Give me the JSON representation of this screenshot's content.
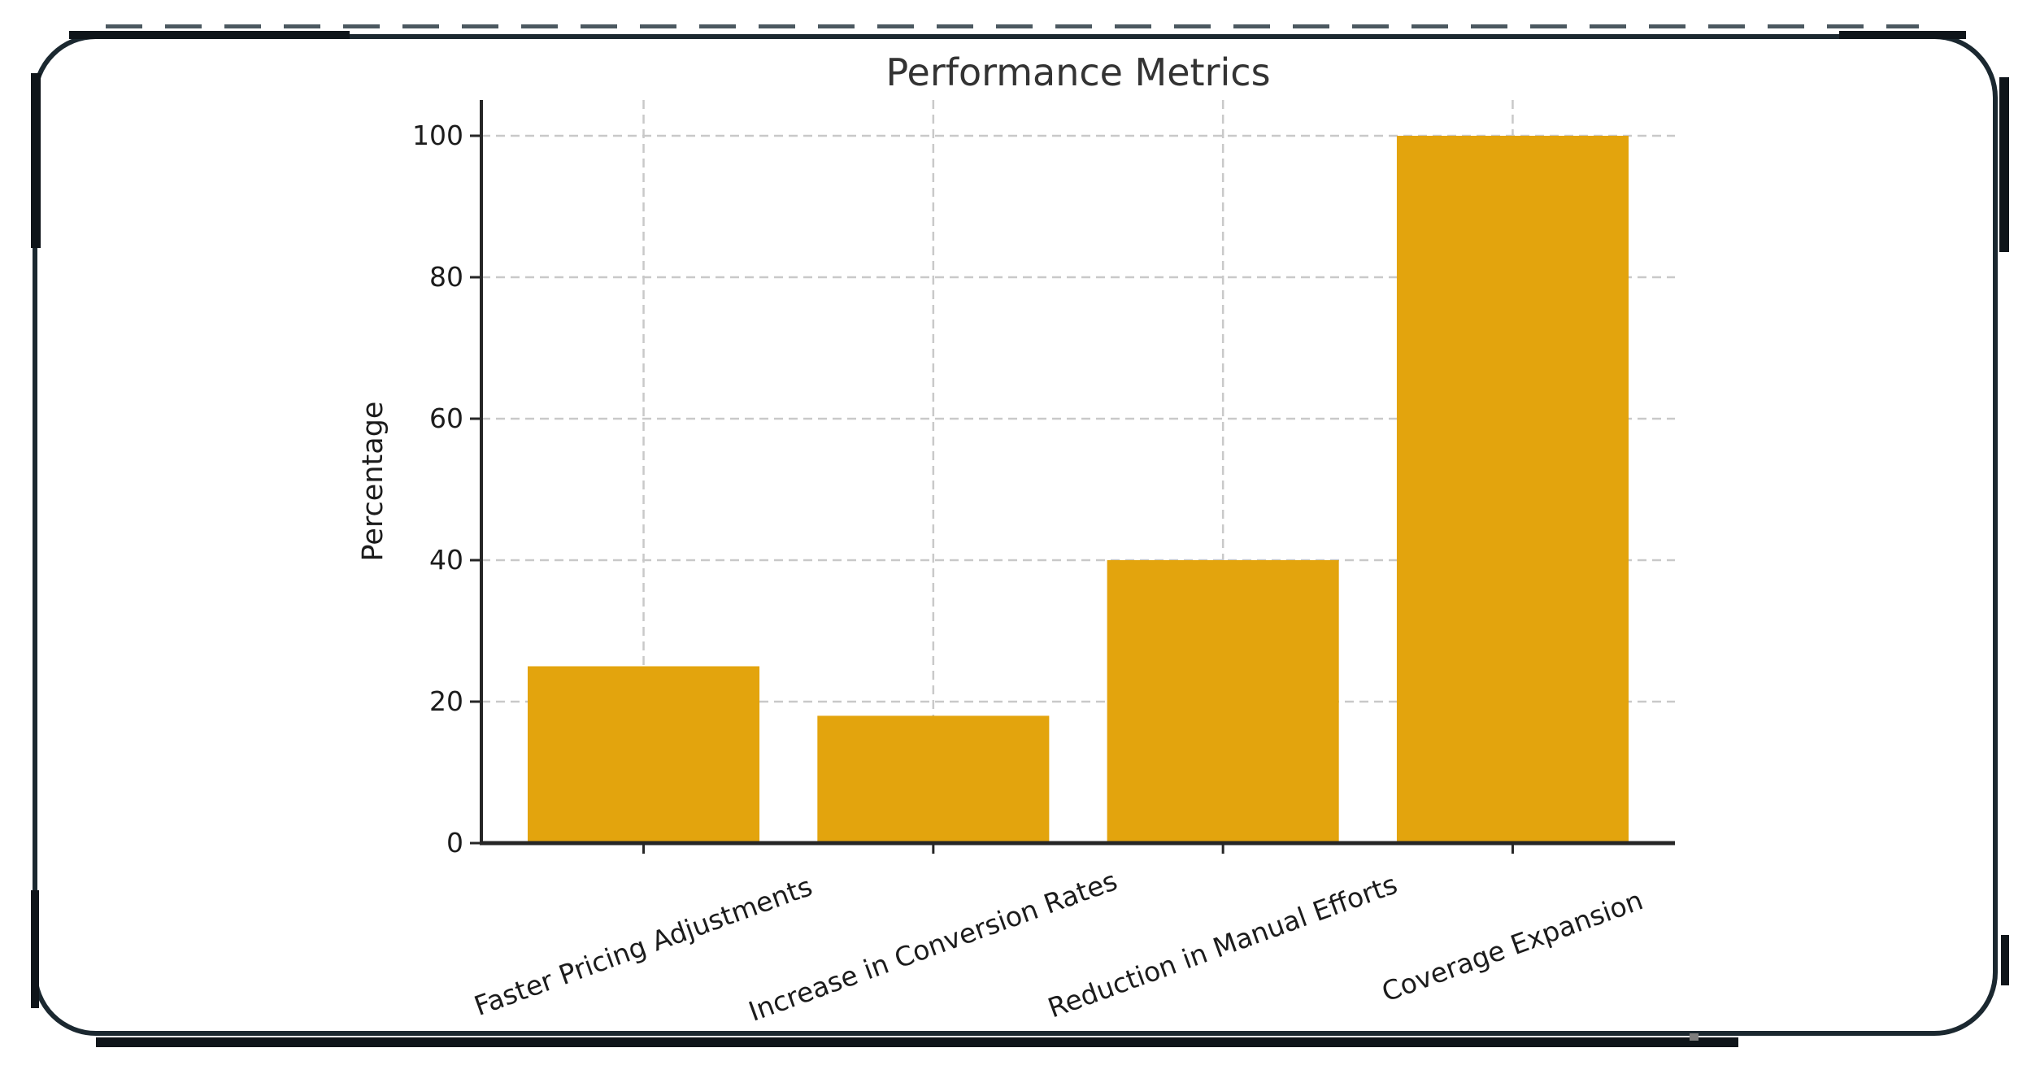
{
  "page": {
    "background": "#ffffff"
  },
  "frame": {
    "color": "#1b2830",
    "accent_color": "#0f151a",
    "pixel_color": "#7d7d7d"
  },
  "chart_data": {
    "type": "bar",
    "title": "Performance Metrics",
    "xlabel": "",
    "ylabel": "Percentage",
    "categories": [
      "Faster Pricing Adjustments",
      "Increase in Conversion Rates",
      "Reduction in Manual Efforts",
      "Coverage Expansion"
    ],
    "values": [
      25,
      18,
      40,
      100
    ],
    "ylim": [
      0,
      100
    ],
    "yticks": [
      0,
      20,
      40,
      60,
      80,
      100
    ],
    "tick_label_rotation": 20,
    "grid": "dashed both axes",
    "legend": "none",
    "bar_color": "#E3A40D",
    "grid_color": "#c9c9c9",
    "axis_color": "#262626",
    "tick_text_color": "#1c1c1c",
    "title_color": "#333333"
  }
}
